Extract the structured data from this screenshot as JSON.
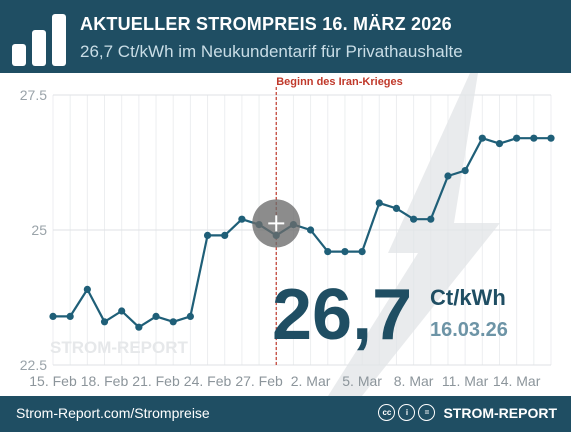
{
  "header": {
    "title": "AKTUELLER STROMPREIS 16. MÄRZ 2026",
    "subtitle": "26,7 Ct/kWh im Neukundentarif für Privathaushalte"
  },
  "footer": {
    "source": "Strom-Report.com/Strompreise",
    "brand": "STROM-REPORT",
    "license_icons": [
      "cc",
      "i",
      "="
    ]
  },
  "chart_data": {
    "type": "line",
    "x": [
      "15.02",
      "16.02",
      "17.02",
      "18.02",
      "19.02",
      "20.02",
      "21.02",
      "22.02",
      "23.02",
      "24.02",
      "25.02",
      "26.02",
      "27.02",
      "28.02",
      "01.03",
      "02.03",
      "03.03",
      "04.03",
      "05.03",
      "06.03",
      "07.03",
      "08.03",
      "09.03",
      "10.03",
      "11.03",
      "12.03",
      "13.03",
      "14.03",
      "15.03",
      "16.03"
    ],
    "values": [
      23.4,
      23.4,
      23.9,
      23.3,
      23.5,
      23.2,
      23.4,
      23.3,
      23.4,
      24.9,
      24.9,
      25.2,
      25.1,
      24.9,
      25.1,
      25.0,
      24.6,
      24.6,
      24.6,
      25.5,
      25.4,
      25.2,
      25.2,
      26.0,
      26.1,
      26.7,
      26.6,
      26.7,
      26.7,
      26.7
    ],
    "ylim": [
      22.5,
      27.5
    ],
    "yticks": [
      "27.5",
      "25",
      "22.5"
    ],
    "ytick_values": [
      27.5,
      25,
      22.5
    ],
    "xtick_labels": [
      "15. Feb",
      "18. Feb",
      "21. Feb",
      "24. Feb",
      "27. Feb",
      "2. Mar",
      "5. Mar",
      "8. Mar",
      "11. Mar",
      "14. Mar"
    ],
    "xtick_days": [
      "15.02",
      "18.02",
      "21.02",
      "24.02",
      "27.02",
      "02.03",
      "05.03",
      "08.03",
      "11.03",
      "14.03"
    ],
    "grid": true,
    "series_color": "#1f5f78",
    "annotation": {
      "label": "Beginn des Iran-Krieges",
      "at": "28.02",
      "color": "#c0392b"
    },
    "highlight_value": "26,7",
    "highlight_unit": "Ct/kWh",
    "highlight_date": "16.03.26",
    "watermark": "STROM-REPORT"
  }
}
